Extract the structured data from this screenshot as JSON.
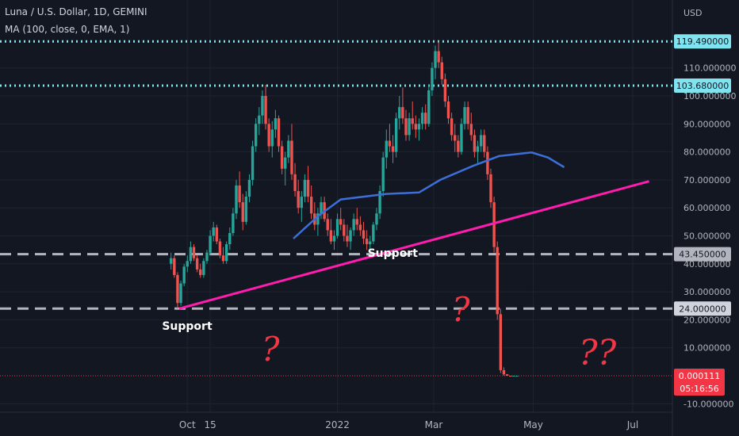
{
  "chart_data": {
    "type": "candlestick",
    "title": "Luna / U.S. Dollar, 1D, GEMINI",
    "indicator": "MA (100, close, 0, EMA, 1)",
    "currency_label": "USD",
    "ylim": [
      -10,
      125
    ],
    "y_ticks": [
      -10,
      10,
      20,
      30,
      40,
      50,
      60,
      70,
      80,
      90,
      100,
      110
    ],
    "y_tick_labels": [
      "-10.000000",
      "10.000000",
      "20.000000",
      "30.000000",
      "40.000000",
      "50.000000",
      "60.000000",
      "70.000000",
      "80.000000",
      "90.000000",
      "100.000000",
      "110.000000"
    ],
    "x_ticks": [
      {
        "date": "2021-10-01",
        "label": "Oct"
      },
      {
        "date": "2021-10-15",
        "label": "15"
      },
      {
        "date": "2022-01-01",
        "label": "2022"
      },
      {
        "date": "2022-03-01",
        "label": "Mar"
      },
      {
        "date": "2022-05-01",
        "label": "May"
      },
      {
        "date": "2022-07-01",
        "label": "Jul"
      }
    ],
    "dotted_levels": [
      119.49,
      103.68
    ],
    "dashed_levels": [
      43.45,
      24.0
    ],
    "price_tags": [
      {
        "label": "119.490000",
        "value": 119.49,
        "bg": "#7fe4f0",
        "fg": "#131722"
      },
      {
        "label": "103.680000",
        "value": 103.68,
        "bg": "#7fe4f0",
        "fg": "#131722"
      },
      {
        "label": "43.450000",
        "value": 43.45,
        "bg": "#b2b5be",
        "fg": "#131722"
      },
      {
        "label": "24.000000",
        "value": 24.0,
        "bg": "#d1d4dc",
        "fg": "#131722"
      }
    ],
    "last_price": {
      "label": "0.000111",
      "countdown": "05:16:56",
      "value": 0.000111,
      "bg": "#f23645"
    },
    "trendline": [
      {
        "date": "2021-09-26",
        "y": 24.0
      },
      {
        "date": "2022-07-11",
        "y": 69.5
      }
    ],
    "ma_curve": [
      {
        "date": "2021-12-05",
        "y": 49
      },
      {
        "date": "2021-12-20",
        "y": 57
      },
      {
        "date": "2022-01-03",
        "y": 63
      },
      {
        "date": "2022-01-31",
        "y": 65
      },
      {
        "date": "2022-02-20",
        "y": 65.5
      },
      {
        "date": "2022-03-05",
        "y": 70
      },
      {
        "date": "2022-03-25",
        "y": 75
      },
      {
        "date": "2022-04-10",
        "y": 78.5
      },
      {
        "date": "2022-04-30",
        "y": 79.8
      },
      {
        "date": "2022-05-10",
        "y": 78
      },
      {
        "date": "2022-05-20",
        "y": 74.5
      }
    ],
    "annotations": [
      {
        "text": "Support",
        "date": "2021-09-26",
        "y": 16.5
      },
      {
        "text": "Support",
        "date": "2022-01-30",
        "y": 42.5
      }
    ],
    "question_marks": [
      "?",
      "?",
      "??"
    ],
    "candles": [
      [
        "2021-09-21",
        40,
        44,
        38,
        42
      ],
      [
        "2021-09-23",
        42,
        43,
        35,
        36
      ],
      [
        "2021-09-25",
        36,
        37,
        24,
        26
      ],
      [
        "2021-09-27",
        26,
        34,
        25,
        33
      ],
      [
        "2021-09-29",
        33,
        40,
        32,
        39
      ],
      [
        "2021-10-01",
        39,
        43,
        37,
        41
      ],
      [
        "2021-10-03",
        41,
        48,
        40,
        46
      ],
      [
        "2021-10-05",
        46,
        47,
        41,
        42
      ],
      [
        "2021-10-07",
        42,
        43,
        37,
        38
      ],
      [
        "2021-10-09",
        38,
        40,
        35,
        36
      ],
      [
        "2021-10-11",
        36,
        42,
        35,
        41
      ],
      [
        "2021-10-13",
        41,
        45,
        40,
        44
      ],
      [
        "2021-10-15",
        44,
        52,
        43,
        50
      ],
      [
        "2021-10-17",
        50,
        55,
        48,
        53
      ],
      [
        "2021-10-19",
        53,
        54,
        47,
        48
      ],
      [
        "2021-10-21",
        48,
        49,
        42,
        43
      ],
      [
        "2021-10-23",
        43,
        46,
        40,
        41
      ],
      [
        "2021-10-25",
        41,
        48,
        40,
        47
      ],
      [
        "2021-10-27",
        47,
        53,
        45,
        51
      ],
      [
        "2021-10-29",
        51,
        60,
        50,
        58
      ],
      [
        "2021-10-31",
        58,
        70,
        56,
        68
      ],
      [
        "2021-11-02",
        68,
        73,
        60,
        62
      ],
      [
        "2021-11-04",
        62,
        65,
        52,
        55
      ],
      [
        "2021-11-06",
        55,
        66,
        54,
        64
      ],
      [
        "2021-11-08",
        64,
        72,
        62,
        70
      ],
      [
        "2021-11-10",
        70,
        84,
        68,
        82
      ],
      [
        "2021-11-12",
        82,
        92,
        80,
        90
      ],
      [
        "2021-11-14",
        90,
        96,
        86,
        93
      ],
      [
        "2021-11-16",
        93,
        102,
        90,
        100
      ],
      [
        "2021-11-18",
        100,
        104,
        88,
        90
      ],
      [
        "2021-11-20",
        90,
        92,
        80,
        82
      ],
      [
        "2021-11-22",
        82,
        91,
        78,
        88
      ],
      [
        "2021-11-24",
        88,
        95,
        85,
        92
      ],
      [
        "2021-11-26",
        92,
        93,
        80,
        82
      ],
      [
        "2021-11-28",
        82,
        84,
        72,
        74
      ],
      [
        "2021-11-30",
        74,
        80,
        68,
        78
      ],
      [
        "2021-12-02",
        78,
        86,
        76,
        84
      ],
      [
        "2021-12-04",
        84,
        90,
        70,
        72
      ],
      [
        "2021-12-06",
        72,
        76,
        64,
        66
      ],
      [
        "2021-12-08",
        66,
        70,
        58,
        60
      ],
      [
        "2021-12-10",
        60,
        66,
        55,
        64
      ],
      [
        "2021-12-12",
        64,
        72,
        62,
        70
      ],
      [
        "2021-12-14",
        70,
        75,
        62,
        64
      ],
      [
        "2021-12-16",
        64,
        68,
        56,
        58
      ],
      [
        "2021-12-18",
        58,
        62,
        52,
        54
      ],
      [
        "2021-12-20",
        54,
        60,
        50,
        58
      ],
      [
        "2021-12-22",
        58,
        64,
        56,
        62
      ],
      [
        "2021-12-24",
        62,
        64,
        55,
        56
      ],
      [
        "2021-12-26",
        56,
        58,
        50,
        52
      ],
      [
        "2021-12-28",
        52,
        56,
        47,
        48
      ],
      [
        "2021-12-30",
        48,
        52,
        45,
        50
      ],
      [
        "2022-01-01",
        50,
        58,
        49,
        56
      ],
      [
        "2022-01-03",
        56,
        60,
        52,
        54
      ],
      [
        "2022-01-05",
        54,
        56,
        48,
        50
      ],
      [
        "2022-01-07",
        50,
        54,
        46,
        48
      ],
      [
        "2022-01-09",
        48,
        53,
        45,
        52
      ],
      [
        "2022-01-11",
        52,
        58,
        50,
        56
      ],
      [
        "2022-01-13",
        56,
        60,
        52,
        54
      ],
      [
        "2022-01-15",
        54,
        57,
        50,
        52
      ],
      [
        "2022-01-17",
        52,
        55,
        47,
        49
      ],
      [
        "2022-01-19",
        49,
        52,
        45,
        47
      ],
      [
        "2022-01-21",
        47,
        50,
        44,
        48
      ],
      [
        "2022-01-23",
        48,
        55,
        47,
        54
      ],
      [
        "2022-01-25",
        54,
        60,
        52,
        58
      ],
      [
        "2022-01-27",
        58,
        68,
        56,
        66
      ],
      [
        "2022-01-29",
        66,
        80,
        64,
        78
      ],
      [
        "2022-01-31",
        78,
        88,
        74,
        84
      ],
      [
        "2022-02-02",
        84,
        90,
        80,
        82
      ],
      [
        "2022-02-04",
        82,
        86,
        76,
        80
      ],
      [
        "2022-02-06",
        80,
        94,
        78,
        92
      ],
      [
        "2022-02-08",
        92,
        100,
        88,
        96
      ],
      [
        "2022-02-10",
        96,
        103,
        90,
        92
      ],
      [
        "2022-02-12",
        92,
        95,
        84,
        86
      ],
      [
        "2022-02-14",
        86,
        94,
        84,
        92
      ],
      [
        "2022-02-16",
        92,
        98,
        88,
        90
      ],
      [
        "2022-02-18",
        90,
        93,
        85,
        88
      ],
      [
        "2022-02-20",
        88,
        92,
        84,
        90
      ],
      [
        "2022-02-22",
        90,
        96,
        88,
        94
      ],
      [
        "2022-02-24",
        94,
        97,
        88,
        90
      ],
      [
        "2022-02-26",
        90,
        104,
        89,
        102
      ],
      [
        "2022-02-28",
        102,
        112,
        100,
        110
      ],
      [
        "2022-03-02",
        110,
        118,
        106,
        116
      ],
      [
        "2022-03-04",
        116,
        119.5,
        110,
        112
      ],
      [
        "2022-03-06",
        112,
        114,
        104,
        106
      ],
      [
        "2022-03-08",
        106,
        108,
        96,
        98
      ],
      [
        "2022-03-10",
        98,
        100,
        90,
        92
      ],
      [
        "2022-03-12",
        92,
        94,
        84,
        86
      ],
      [
        "2022-03-14",
        86,
        90,
        80,
        84
      ],
      [
        "2022-03-16",
        84,
        86,
        78,
        80
      ],
      [
        "2022-03-18",
        80,
        92,
        79,
        90
      ],
      [
        "2022-03-20",
        90,
        98,
        88,
        96
      ],
      [
        "2022-03-22",
        96,
        98,
        88,
        90
      ],
      [
        "2022-03-24",
        90,
        94,
        84,
        86
      ],
      [
        "2022-03-26",
        86,
        88,
        78,
        80
      ],
      [
        "2022-03-28",
        80,
        84,
        76,
        82
      ],
      [
        "2022-03-30",
        82,
        88,
        80,
        86
      ],
      [
        "2022-04-01",
        86,
        88,
        78,
        80
      ],
      [
        "2022-04-03",
        80,
        82,
        70,
        72
      ],
      [
        "2022-04-05",
        72,
        74,
        60,
        62
      ],
      [
        "2022-04-07",
        62,
        64,
        44,
        46
      ],
      [
        "2022-04-09",
        46,
        48,
        20,
        22
      ],
      [
        "2022-04-11",
        22,
        24,
        1,
        2
      ],
      [
        "2022-04-13",
        2,
        3,
        0,
        0.5
      ],
      [
        "2022-04-15",
        0.5,
        0.6,
        0,
        0.0002
      ],
      [
        "2022-04-17",
        0.0002,
        0.0003,
        0,
        0.00011
      ],
      [
        "2022-04-19",
        0.00011,
        0.00012,
        0,
        0.00011
      ],
      [
        "2022-04-21",
        0.00011,
        0.00012,
        0,
        0.000111
      ]
    ]
  }
}
